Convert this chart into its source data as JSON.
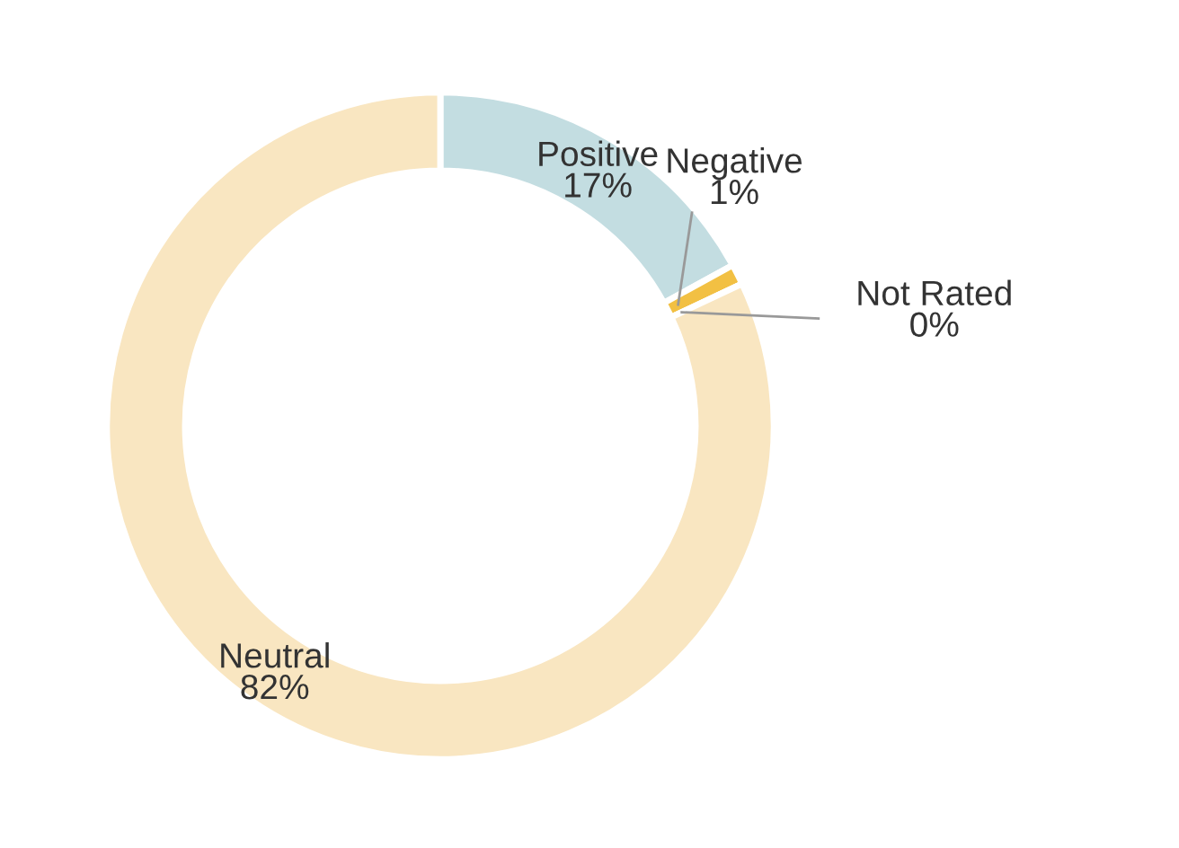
{
  "chart_data": {
    "type": "donut",
    "categories": [
      "Positive",
      "Negative",
      "Not Rated",
      "Neutral"
    ],
    "values": [
      17,
      1,
      0,
      82
    ],
    "value_labels": [
      "17%",
      "1%",
      "0%",
      "82%"
    ],
    "colors": [
      "#c3dde1",
      "#f2c043",
      "#e0a030",
      "#f9e6c1"
    ]
  }
}
